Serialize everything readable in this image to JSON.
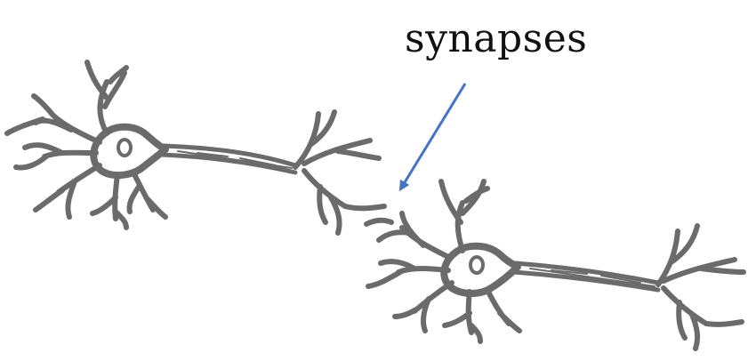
{
  "annotation": {
    "label": "synapses",
    "arrow_color": "#4472c4"
  },
  "colors": {
    "neuron": "#6b6b6b",
    "text": "#111111",
    "background": "#ffffff"
  }
}
